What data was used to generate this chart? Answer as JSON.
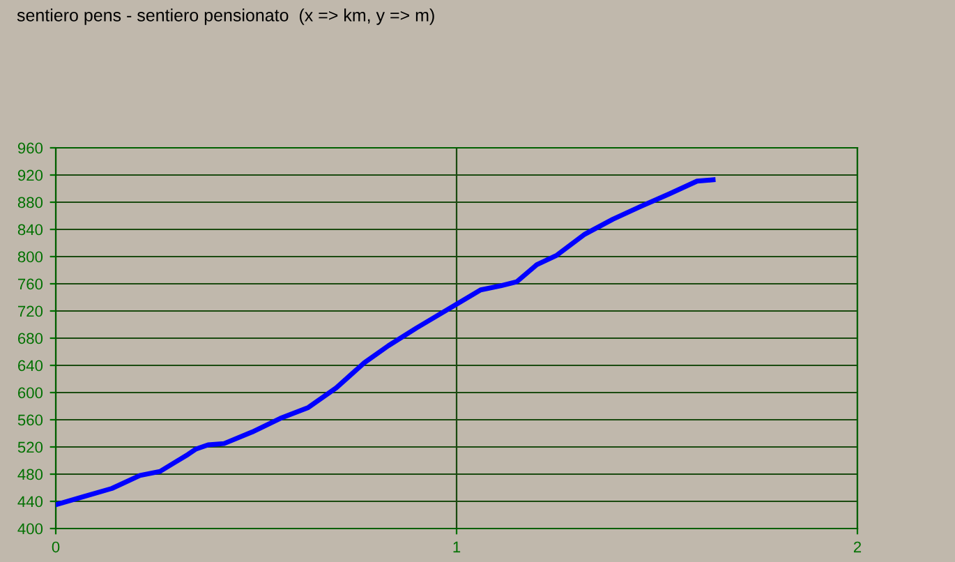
{
  "chart_data": {
    "type": "line",
    "title": "sentiero pens - sentiero pensionato  (x => km, y => m)",
    "series": [
      {
        "color": "#0000ff",
        "x": [
          0,
          0.07,
          0.14,
          0.21,
          0.26,
          0.33,
          0.35,
          0.38,
          0.42,
          0.49,
          0.56,
          0.63,
          0.7,
          0.77,
          0.83,
          0.9,
          1.0,
          1.06,
          1.11,
          1.15,
          1.2,
          1.25,
          1.32,
          1.39,
          1.46,
          1.53,
          1.6,
          1.64
        ],
        "values": [
          435,
          447,
          459,
          478,
          484,
          509,
          517,
          523,
          525,
          542,
          562,
          578,
          607,
          644,
          669,
          695,
          730,
          751,
          757,
          763,
          788,
          802,
          833,
          855,
          874,
          892,
          911,
          913
        ]
      }
    ],
    "xlim": [
      0,
      2
    ],
    "xticks": [
      0,
      1,
      2
    ],
    "ylim": [
      400,
      960
    ],
    "yticks": [
      400,
      440,
      480,
      520,
      560,
      600,
      640,
      680,
      720,
      760,
      800,
      840,
      880,
      920,
      960
    ],
    "grid": true,
    "marker": "none",
    "line_style": "solid"
  }
}
